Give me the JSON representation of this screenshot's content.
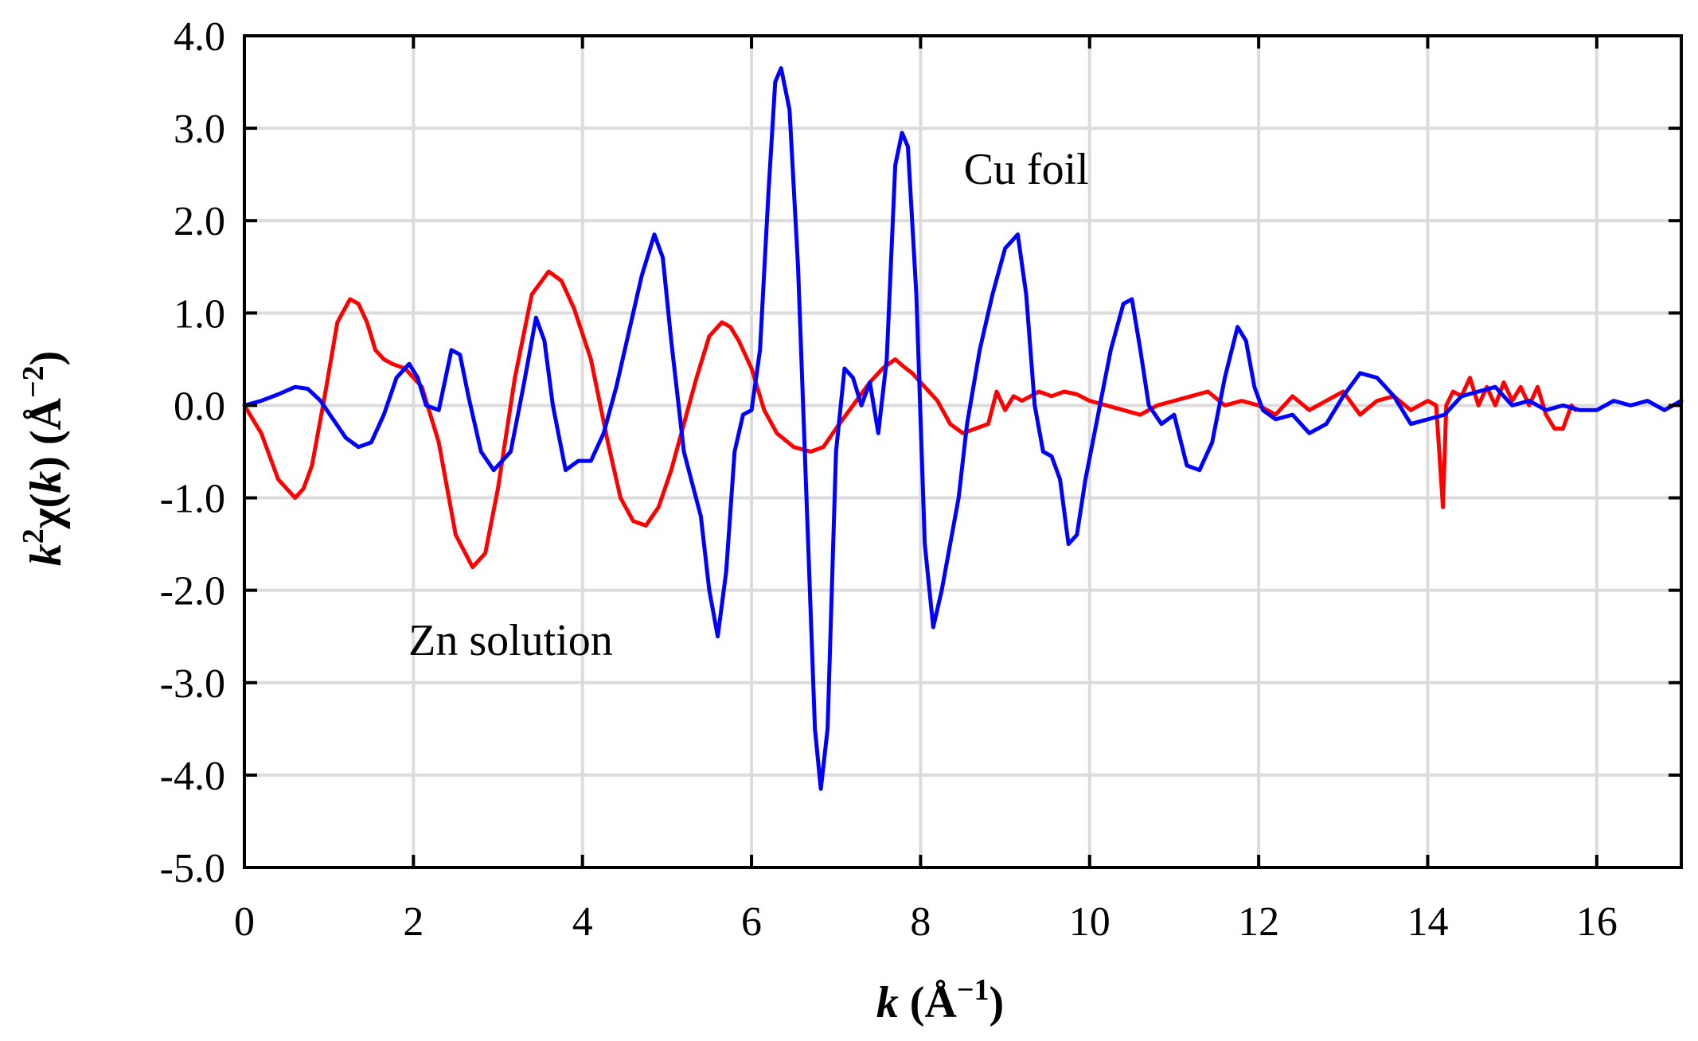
{
  "chart_data": {
    "type": "line",
    "title": "",
    "xlabel": "k (Å⁻¹)",
    "ylabel": "k²χ(k) (Å⁻²)",
    "xlabel_parts": {
      "var": "k",
      "space": " ",
      "unit_open": "(Å",
      "unit_exp": "−1",
      "unit_close": ")"
    },
    "ylabel_parts": {
      "k": "k",
      "k_exp": "2",
      "chi": "χ(",
      "arg": "k",
      "arg_close": ") ",
      "unit_open": "(Å",
      "unit_exp": "−2",
      "unit_close": ")"
    },
    "xlim": [
      0,
      17
    ],
    "ylim": [
      -5.0,
      4.0
    ],
    "grid": true,
    "x_ticks": [
      0,
      2,
      4,
      6,
      8,
      10,
      12,
      14,
      16
    ],
    "x_tick_labels": [
      "0",
      "2",
      "4",
      "6",
      "8",
      "10",
      "12",
      "14",
      "16"
    ],
    "y_ticks": [
      4.0,
      3.0,
      2.0,
      1.0,
      0.0,
      -1.0,
      -2.0,
      -3.0,
      -4.0,
      -5.0
    ],
    "y_tick_labels": [
      "4.0",
      "3.0",
      "2.0",
      "1.0",
      "0.0",
      "-1.0",
      "-2.0",
      "-3.0",
      "-4.0",
      "-5.0"
    ],
    "annotations": [
      {
        "text": "Cu foil",
        "x": 9.25,
        "y": 2.4
      },
      {
        "text": "Zn solution",
        "x": 3.15,
        "y": -2.7
      }
    ],
    "series": [
      {
        "name": "Zn solution",
        "color": "#ff0000",
        "x": [
          0,
          0.2,
          0.4,
          0.6,
          0.7,
          0.8,
          0.95,
          1.1,
          1.25,
          1.35,
          1.45,
          1.55,
          1.65,
          1.75,
          1.9,
          2.1,
          2.3,
          2.5,
          2.7,
          2.85,
          3.0,
          3.2,
          3.4,
          3.6,
          3.75,
          3.9,
          4.1,
          4.3,
          4.45,
          4.6,
          4.75,
          4.9,
          5.05,
          5.2,
          5.35,
          5.5,
          5.65,
          5.75,
          5.85,
          6.0,
          6.15,
          6.3,
          6.5,
          6.7,
          6.85,
          7.0,
          7.2,
          7.4,
          7.55,
          7.7,
          7.8,
          7.9,
          8.05,
          8.2,
          8.35,
          8.5,
          8.65,
          8.8,
          8.9,
          9.0,
          9.1,
          9.2,
          9.3,
          9.4,
          9.55,
          9.7,
          9.85,
          10.0,
          10.2,
          10.4,
          10.6,
          10.8,
          11.0,
          11.2,
          11.4,
          11.6,
          11.8,
          12.0,
          12.2,
          12.4,
          12.6,
          12.8,
          13.0,
          13.2,
          13.4,
          13.6,
          13.8,
          14.0,
          14.1,
          14.18,
          14.22,
          14.3,
          14.4,
          14.5,
          14.6,
          14.7,
          14.8,
          14.9,
          15.0,
          15.1,
          15.2,
          15.3,
          15.4,
          15.5,
          15.6,
          15.7,
          15.75
        ],
        "y": [
          0,
          -0.3,
          -0.8,
          -1.0,
          -0.9,
          -0.65,
          0.1,
          0.9,
          1.15,
          1.1,
          0.9,
          0.6,
          0.5,
          0.45,
          0.4,
          0.2,
          -0.4,
          -1.4,
          -1.75,
          -1.6,
          -0.9,
          0.3,
          1.2,
          1.45,
          1.35,
          1.05,
          0.5,
          -0.4,
          -1.0,
          -1.25,
          -1.3,
          -1.1,
          -0.7,
          -0.2,
          0.3,
          0.75,
          0.9,
          0.85,
          0.7,
          0.4,
          -0.05,
          -0.3,
          -0.45,
          -0.5,
          -0.45,
          -0.25,
          0.0,
          0.25,
          0.4,
          0.5,
          0.42,
          0.35,
          0.2,
          0.05,
          -0.2,
          -0.3,
          -0.25,
          -0.2,
          0.15,
          -0.05,
          0.1,
          0.05,
          0.1,
          0.15,
          0.1,
          0.15,
          0.12,
          0.05,
          0.0,
          -0.05,
          -0.1,
          0.0,
          0.05,
          0.1,
          0.15,
          0.0,
          0.05,
          0.0,
          -0.1,
          0.1,
          -0.05,
          0.05,
          0.15,
          -0.1,
          0.05,
          0.1,
          -0.05,
          0.05,
          0.0,
          -1.1,
          0.0,
          0.15,
          0.1,
          0.3,
          0.0,
          0.2,
          0.0,
          0.25,
          0.05,
          0.2,
          0.0,
          0.2,
          -0.1,
          -0.25,
          -0.25,
          0.0,
          -0.05
        ]
      },
      {
        "name": "Cu foil",
        "color": "#0000ff",
        "x": [
          0,
          0.2,
          0.4,
          0.6,
          0.75,
          0.9,
          1.05,
          1.2,
          1.35,
          1.5,
          1.65,
          1.8,
          1.95,
          2.05,
          2.15,
          2.3,
          2.45,
          2.55,
          2.65,
          2.8,
          2.95,
          3.15,
          3.3,
          3.45,
          3.55,
          3.65,
          3.8,
          3.95,
          4.1,
          4.25,
          4.4,
          4.55,
          4.7,
          4.85,
          4.95,
          5.05,
          5.2,
          5.4,
          5.5,
          5.6,
          5.7,
          5.8,
          5.9,
          6.0,
          6.1,
          6.2,
          6.28,
          6.35,
          6.45,
          6.55,
          6.65,
          6.75,
          6.82,
          6.9,
          7.0,
          7.1,
          7.2,
          7.3,
          7.4,
          7.5,
          7.6,
          7.7,
          7.78,
          7.85,
          7.95,
          8.05,
          8.15,
          8.25,
          8.35,
          8.45,
          8.55,
          8.7,
          8.85,
          9.0,
          9.15,
          9.25,
          9.35,
          9.45,
          9.55,
          9.65,
          9.75,
          9.85,
          9.95,
          10.1,
          10.25,
          10.4,
          10.5,
          10.6,
          10.7,
          10.85,
          11.0,
          11.15,
          11.3,
          11.45,
          11.6,
          11.75,
          11.85,
          11.95,
          12.05,
          12.2,
          12.4,
          12.6,
          12.8,
          13.0,
          13.2,
          13.4,
          13.6,
          13.8,
          14.0,
          14.2,
          14.4,
          14.6,
          14.8,
          15.0,
          15.2,
          15.4,
          15.6,
          15.8,
          16.0,
          16.2,
          16.4,
          16.6,
          16.8,
          17.0
        ],
        "y": [
          0,
          0.05,
          0.12,
          0.2,
          0.18,
          0.05,
          -0.15,
          -0.35,
          -0.45,
          -0.4,
          -0.1,
          0.3,
          0.45,
          0.3,
          0.0,
          -0.05,
          0.6,
          0.55,
          0.1,
          -0.5,
          -0.7,
          -0.5,
          0.2,
          0.95,
          0.7,
          0.0,
          -0.7,
          -0.6,
          -0.6,
          -0.3,
          0.2,
          0.8,
          1.4,
          1.85,
          1.6,
          0.7,
          -0.5,
          -1.2,
          -2.0,
          -2.5,
          -1.8,
          -0.5,
          -0.1,
          -0.05,
          0.6,
          2.3,
          3.5,
          3.65,
          3.2,
          1.5,
          -1.0,
          -3.5,
          -4.15,
          -3.5,
          -0.5,
          0.4,
          0.3,
          0.0,
          0.25,
          -0.3,
          0.5,
          2.6,
          2.95,
          2.8,
          1.2,
          -1.5,
          -2.4,
          -2.0,
          -1.5,
          -1.0,
          -0.2,
          0.6,
          1.2,
          1.7,
          1.85,
          1.2,
          0.0,
          -0.5,
          -0.55,
          -0.8,
          -1.5,
          -1.4,
          -0.8,
          -0.1,
          0.6,
          1.1,
          1.15,
          0.6,
          0.0,
          -0.2,
          -0.1,
          -0.65,
          -0.7,
          -0.4,
          0.3,
          0.85,
          0.7,
          0.2,
          -0.05,
          -0.15,
          -0.1,
          -0.3,
          -0.2,
          0.1,
          0.35,
          0.3,
          0.1,
          -0.2,
          -0.15,
          -0.1,
          0.1,
          0.15,
          0.2,
          0.0,
          0.05,
          -0.05,
          0.0,
          -0.05,
          -0.05,
          0.05,
          0.0,
          0.05,
          -0.05,
          0.05
        ]
      }
    ]
  }
}
